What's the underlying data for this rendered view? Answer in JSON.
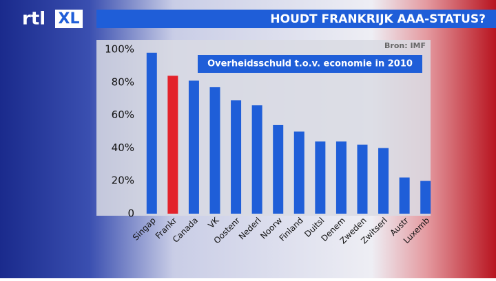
{
  "logo": [
    "rtl",
    "XL"
  ],
  "chart_data": {
    "type": "bar",
    "title": "HOUDT FRANKRIJK AAA-STATUS?",
    "source": "Bron: IMF",
    "subtitle": "Overheidsschuld t.o.v. economie in 2010",
    "categories": [
      "Singap",
      "Frankr",
      "Canada",
      "VK",
      "Oostenr",
      "Nederl",
      "Noorw",
      "Finland",
      "Duitsl",
      "Denem",
      "Zweden",
      "Zwitserl",
      "Austr",
      "Luxemb"
    ],
    "values": [
      98,
      84,
      81,
      77,
      69,
      66,
      54,
      50,
      44,
      44,
      42,
      40,
      22,
      20
    ],
    "colors": [
      "#1f5ed8",
      "#e3222b",
      "#1f5ed8",
      "#1f5ed8",
      "#1f5ed8",
      "#1f5ed8",
      "#1f5ed8",
      "#1f5ed8",
      "#1f5ed8",
      "#1f5ed8",
      "#1f5ed8",
      "#1f5ed8",
      "#1f5ed8",
      "#1f5ed8"
    ],
    "ylim": [
      0,
      100
    ],
    "yticks": [
      {
        "value": 0,
        "label": "0"
      },
      {
        "value": 20,
        "label": "20%"
      },
      {
        "value": 40,
        "label": "40%"
      },
      {
        "value": 60,
        "label": "60%"
      },
      {
        "value": 80,
        "label": "80%"
      },
      {
        "value": 100,
        "label": "100%"
      }
    ],
    "grid": false
  }
}
